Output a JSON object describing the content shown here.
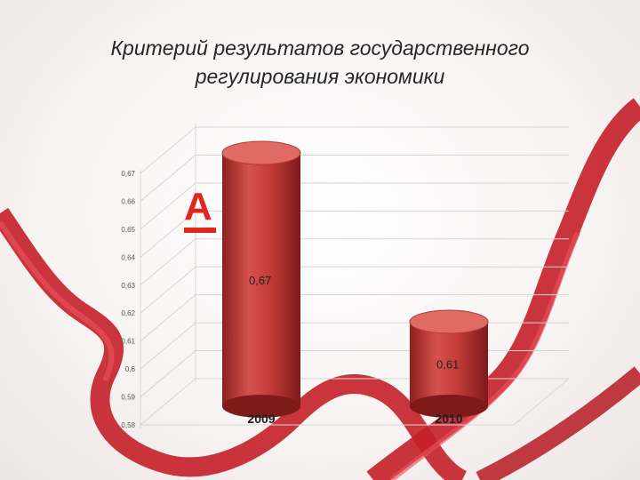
{
  "title": {
    "line1": "Критерий результатов государственного",
    "line2": "регулирования экономики"
  },
  "logo": {
    "letter": "А",
    "color": "#e0261d"
  },
  "colors": {
    "bar": "#c93a3a",
    "bar_top": "#e06a64",
    "ribbon": "#d8262e",
    "grid": "#d6d6d6"
  },
  "chart_data": {
    "type": "bar",
    "categories": [
      "2009",
      "2010"
    ],
    "values": [
      0.67,
      0.61
    ],
    "data_labels": [
      "0,67",
      "0,61"
    ],
    "y_ticks": [
      "0,58",
      "0,59",
      "0,6",
      "0,61",
      "0,62",
      "0,63",
      "0,64",
      "0,65",
      "0,66",
      "0,67"
    ],
    "ylim": [
      0.58,
      0.67
    ],
    "grid": true,
    "style": "3d-cylinder"
  }
}
